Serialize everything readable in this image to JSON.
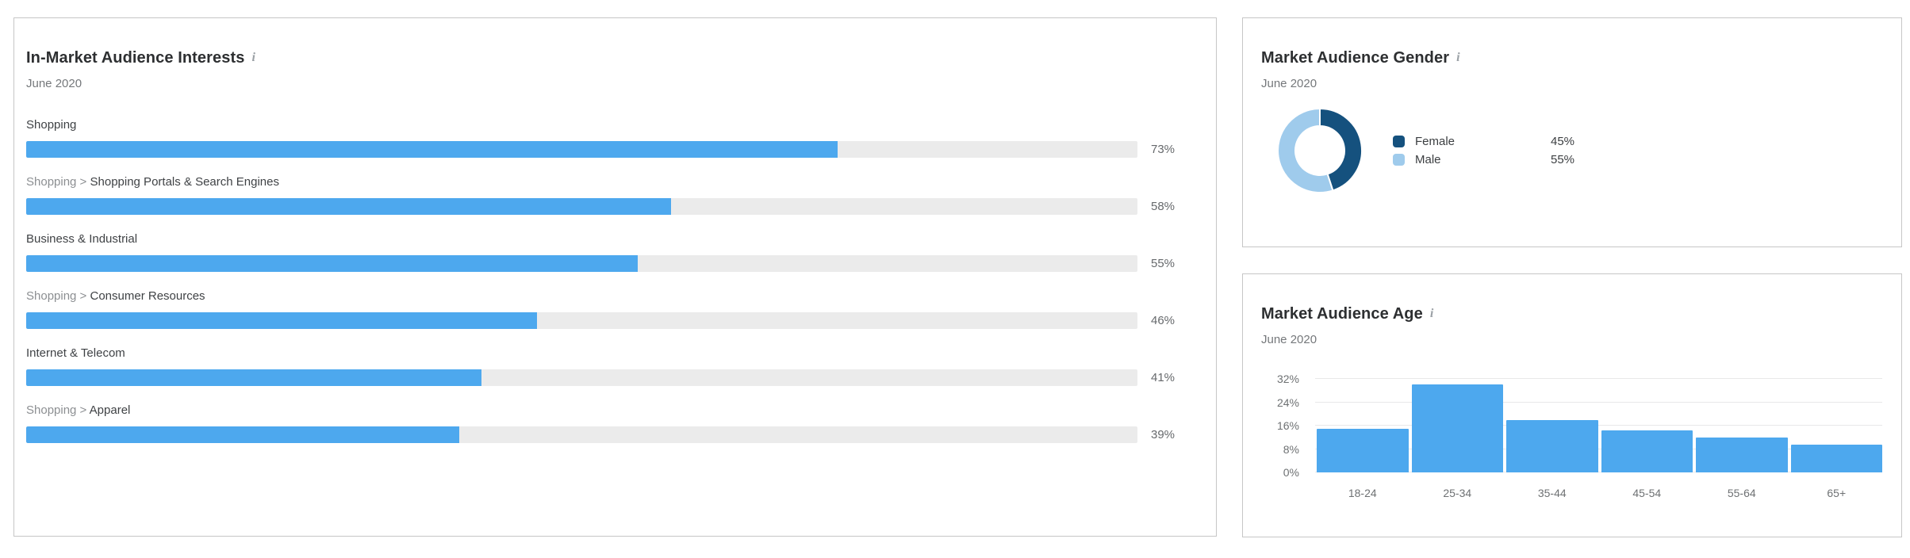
{
  "icons": {
    "info": "i"
  },
  "chart_data": [
    {
      "id": "interests",
      "type": "bar",
      "orientation": "horizontal",
      "title": "In-Market Audience Interests",
      "subtitle": "June 2020",
      "unit": "%",
      "xlim": [
        0,
        100
      ],
      "grid": false,
      "bar_color": "#4da8ee",
      "track_color": "#ebebeb",
      "rows": [
        {
          "path_prefix": "",
          "category": "Shopping",
          "value": 73,
          "display": "73%"
        },
        {
          "path_prefix": "Shopping > ",
          "category": "Shopping Portals & Search Engines",
          "value": 58,
          "display": "58%"
        },
        {
          "path_prefix": "",
          "category": "Business & Industrial",
          "value": 55,
          "display": "55%"
        },
        {
          "path_prefix": "Shopping > ",
          "category": "Consumer Resources",
          "value": 46,
          "display": "46%"
        },
        {
          "path_prefix": "",
          "category": "Internet & Telecom",
          "value": 41,
          "display": "41%"
        },
        {
          "path_prefix": "Shopping > ",
          "category": "Apparel",
          "value": 39,
          "display": "39%"
        }
      ]
    },
    {
      "id": "gender",
      "type": "donut",
      "title": "Market Audience Gender",
      "subtitle": "June 2020",
      "start_angle": "top",
      "direction": "clockwise",
      "legend_position": "right",
      "segments": [
        {
          "label": "Female",
          "value": 45,
          "display": "45%",
          "color": "#15517e"
        },
        {
          "label": "Male",
          "value": 55,
          "display": "55%",
          "color": "#9fcbec"
        }
      ]
    },
    {
      "id": "age",
      "type": "bar",
      "orientation": "vertical",
      "title": "Market Audience Age",
      "subtitle": "June 2020",
      "unit": "%",
      "ylim": [
        0,
        32
      ],
      "yticks": [
        0,
        8,
        16,
        24,
        32
      ],
      "ytick_labels": [
        "0%",
        "8%",
        "16%",
        "24%",
        "32%"
      ],
      "grid": true,
      "bar_color": "#4da8ee",
      "categories": [
        "18-24",
        "25-34",
        "35-44",
        "45-54",
        "55-64",
        "65+"
      ],
      "values": [
        15,
        30,
        18,
        14.5,
        12,
        9.5
      ]
    }
  ]
}
